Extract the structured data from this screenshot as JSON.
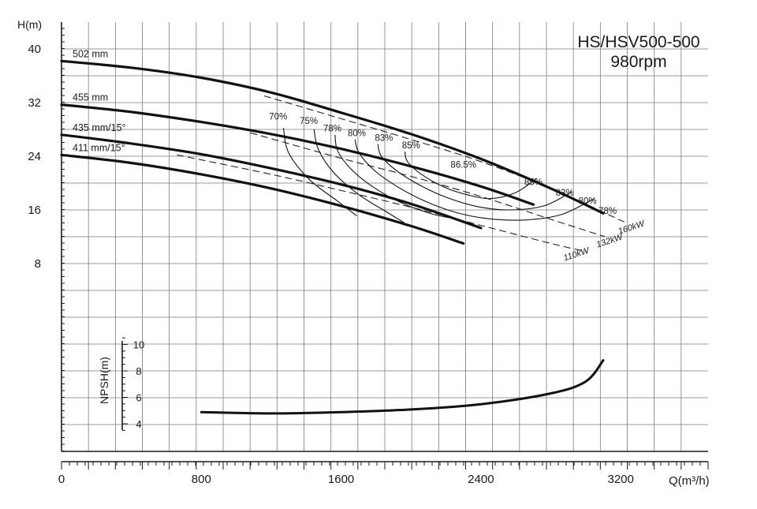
{
  "chart_data": [
    {
      "type": "line",
      "title": "HS/HSV500-500",
      "subtitle": "980rpm",
      "xlabel": "Q(m³/h)",
      "ylabel": "H(m)",
      "xlim": [
        0,
        3700
      ],
      "ylim": [
        0,
        42
      ],
      "x_ticks": [
        "0",
        "800",
        "1600",
        "2400",
        "3200"
      ],
      "y_ticks": [
        "8",
        "16",
        "24",
        "32",
        "40"
      ],
      "grid": true,
      "head_series": [
        {
          "name": "502 mm",
          "points": [
            [
              0,
              38.2
            ],
            [
              400,
              37.2
            ],
            [
              800,
              35.7
            ],
            [
              1200,
              33.5
            ],
            [
              1600,
              30.5
            ],
            [
              2000,
              27.3
            ],
            [
              2400,
              23.6
            ],
            [
              2800,
              19.2
            ],
            [
              3100,
              15.5
            ]
          ]
        },
        {
          "name": "455 mm",
          "points": [
            [
              0,
              31.7
            ],
            [
              400,
              30.6
            ],
            [
              800,
              29.1
            ],
            [
              1200,
              27.3
            ],
            [
              1600,
              25.1
            ],
            [
              2000,
              22.5
            ],
            [
              2400,
              19.5
            ],
            [
              2700,
              16.8
            ]
          ]
        },
        {
          "name": "435 mm/15°",
          "points": [
            [
              0,
              27.2
            ],
            [
              400,
              25.9
            ],
            [
              800,
              24.3
            ],
            [
              1200,
              22.2
            ],
            [
              1600,
              19.8
            ],
            [
              2000,
              16.9
            ],
            [
              2400,
              13.3
            ]
          ]
        },
        {
          "name": "411 mm/15°",
          "points": [
            [
              0,
              24.2
            ],
            [
              400,
              23.0
            ],
            [
              800,
              21.3
            ],
            [
              1200,
              19.2
            ],
            [
              1600,
              16.6
            ],
            [
              2000,
              13.6
            ],
            [
              2300,
              11.0
            ]
          ]
        }
      ],
      "efficiency_series": [
        {
          "name": "70%",
          "points": [
            [
              1270,
              28.2
            ],
            [
              1300,
              24.5
            ],
            [
              1420,
              20.5
            ],
            [
              1580,
              17.3
            ],
            [
              1690,
              15.1
            ]
          ]
        },
        {
          "name": "75%",
          "points": [
            [
              1445,
              28.0
            ],
            [
              1470,
              25.0
            ],
            [
              1560,
              21.5
            ],
            [
              1700,
              18.3
            ],
            [
              1860,
              15.7
            ],
            [
              1960,
              14.1
            ]
          ]
        },
        {
          "name": "78%",
          "points": [
            [
              1565,
              27.2
            ],
            [
              1580,
              24.8
            ],
            [
              1660,
              22.0
            ],
            [
              1790,
              19.3
            ],
            [
              1950,
              17.0
            ],
            [
              2120,
              15.4
            ],
            [
              2270,
              14.6
            ]
          ]
        },
        {
          "name": "80%",
          "points": [
            [
              1680,
              26.5
            ],
            [
              1700,
              24.6
            ],
            [
              1790,
              21.9
            ],
            [
              1920,
              19.5
            ],
            [
              2080,
              17.3
            ],
            [
              2260,
              15.6
            ],
            [
              2440,
              14.7
            ],
            [
              2650,
              14.5
            ],
            [
              2860,
              15.3
            ],
            [
              3050,
              17.7
            ]
          ]
        },
        {
          "name": "83%",
          "points": [
            [
              1810,
              25.8
            ],
            [
              1830,
              24.0
            ],
            [
              1920,
              21.8
            ],
            [
              2050,
              19.7
            ],
            [
              2200,
              17.9
            ],
            [
              2380,
              16.5
            ],
            [
              2560,
              16.0
            ],
            [
              2760,
              16.6
            ],
            [
              2920,
              18.7
            ]
          ]
        },
        {
          "name": "85%",
          "points": [
            [
              1965,
              24.7
            ],
            [
              1980,
              23.2
            ],
            [
              2060,
              21.3
            ],
            [
              2190,
              19.4
            ],
            [
              2330,
              18.2
            ],
            [
              2460,
              17.7
            ],
            [
              2600,
              18.6
            ],
            [
              2720,
              20.7
            ]
          ]
        }
      ],
      "power_series": [
        {
          "name": "160kW",
          "points": [
            [
              1160,
              33.0
            ],
            [
              1600,
              29.6
            ],
            [
              2000,
              26.5
            ],
            [
              2400,
              23.2
            ],
            [
              2800,
              19.2
            ],
            [
              3220,
              14.2
            ]
          ]
        },
        {
          "name": "132kW",
          "points": [
            [
              1080,
              27.5
            ],
            [
              1600,
              23.7
            ],
            [
              2000,
              21.0
            ],
            [
              2400,
              18.0
            ],
            [
              2800,
              14.6
            ],
            [
              3110,
              12.0
            ]
          ]
        },
        {
          "name": "110kW",
          "points": [
            [
              660,
              24.2
            ],
            [
              1200,
              21.3
            ],
            [
              1600,
              18.9
            ],
            [
              2000,
              16.4
            ],
            [
              2400,
              13.7
            ],
            [
              2800,
              11.0
            ],
            [
              3000,
              9.8
            ]
          ]
        }
      ],
      "efficiency_labels": [
        {
          "text": "70%",
          "q": 1240,
          "h": 29.5
        },
        {
          "text": "75%",
          "q": 1415,
          "h": 28.8
        },
        {
          "text": "78%",
          "q": 1550,
          "h": 27.7
        },
        {
          "text": "80%",
          "q": 1690,
          "h": 27.0
        },
        {
          "text": "83%",
          "q": 1845,
          "h": 26.3
        },
        {
          "text": "85%",
          "q": 2000,
          "h": 25.2
        },
        {
          "text": "86.5%",
          "q": 2300,
          "h": 22.3
        },
        {
          "text": "85%",
          "q": 2700,
          "h": 19.7
        },
        {
          "text": "83%",
          "q": 2880,
          "h": 18.1
        },
        {
          "text": "80%",
          "q": 3010,
          "h": 16.9
        },
        {
          "text": "78%",
          "q": 3125,
          "h": 15.4
        }
      ],
      "power_labels": [
        {
          "text": "160kW",
          "q": 3265,
          "h": 13.0
        },
        {
          "text": "132kW",
          "q": 3140,
          "h": 11.0
        },
        {
          "text": "110kW",
          "q": 2950,
          "h": 9.0
        }
      ]
    },
    {
      "type": "line",
      "ylabel": "NPSH(m)",
      "xlim": [
        0,
        3700
      ],
      "ylim": [
        2,
        11
      ],
      "y_ticks": [
        "4",
        "6",
        "8",
        "10"
      ],
      "series": [
        {
          "name": "",
          "points": [
            [
              800,
              4.88
            ],
            [
              1200,
              4.78
            ],
            [
              1600,
              4.88
            ],
            [
              2000,
              5.08
            ],
            [
              2400,
              5.48
            ],
            [
              2800,
              6.3
            ],
            [
              3000,
              7.2
            ],
            [
              3100,
              8.8
            ]
          ]
        }
      ]
    }
  ]
}
